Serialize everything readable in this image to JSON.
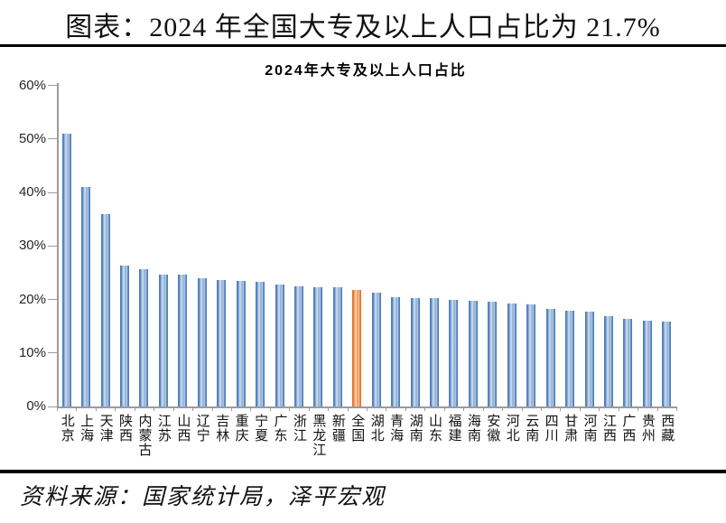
{
  "header": {
    "title": "图表：2024 年全国大专及以上人口占比为 21.7%"
  },
  "chart_data": {
    "type": "bar",
    "title": "2024年大专及以上人口占比",
    "categories": [
      "北京",
      "上海",
      "天津",
      "陕西",
      "内蒙古",
      "江苏",
      "山西",
      "辽宁",
      "吉林",
      "重庆",
      "宁夏",
      "广东",
      "浙江",
      "黑龙江",
      "新疆",
      "全国",
      "湖北",
      "青海",
      "湖南",
      "山东",
      "福建",
      "海南",
      "安徽",
      "河北",
      "云南",
      "四川",
      "甘肃",
      "河南",
      "江西",
      "广西",
      "贵州",
      "西藏"
    ],
    "values": [
      51.0,
      41.0,
      36.0,
      26.3,
      25.7,
      24.7,
      24.6,
      24.0,
      23.6,
      23.4,
      23.3,
      22.8,
      22.4,
      22.3,
      22.3,
      21.7,
      21.2,
      20.4,
      20.3,
      20.2,
      19.9,
      19.8,
      19.5,
      19.2,
      19.0,
      18.3,
      17.9,
      17.7,
      16.9,
      16.4,
      16.1,
      15.9
    ],
    "highlight_category": "全国",
    "highlight_value": 21.7,
    "ylim": [
      0,
      60
    ],
    "ytick_step": 10,
    "ytick_labels": [
      "0%",
      "10%",
      "20%",
      "30%",
      "40%",
      "50%",
      "60%"
    ],
    "grid": false,
    "legend": "none",
    "bar_color": "#4d7ebc",
    "highlight_color": "#e2752c",
    "axis_color": "#9b9b9b"
  },
  "footer": {
    "source": "资料来源：国家统计局，泽平宏观"
  }
}
